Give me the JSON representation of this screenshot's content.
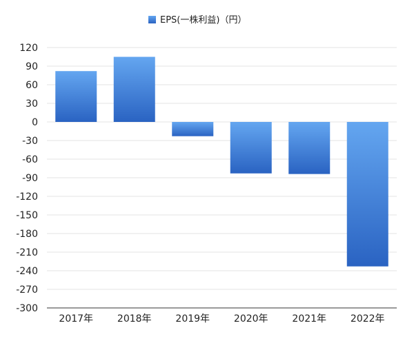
{
  "chart_data": {
    "type": "bar",
    "categories": [
      "2017年",
      "2018年",
      "2019年",
      "2020年",
      "2021年",
      "2022年"
    ],
    "series": [
      {
        "name": "EPS(一株利益)（円）",
        "values": [
          82,
          105,
          -23,
          -83,
          -84,
          -233
        ]
      }
    ],
    "ylim": [
      -300,
      120
    ],
    "yticks": [
      120,
      90,
      60,
      30,
      0,
      -30,
      -60,
      -90,
      -120,
      -150,
      -180,
      -210,
      -240,
      -270,
      -300
    ],
    "ytick_labels": [
      "120",
      "90",
      "60",
      "30",
      "0",
      "-30",
      "-60",
      "-90",
      "-120",
      "-150",
      "-180",
      "-210",
      "-240",
      "-270",
      "-300"
    ],
    "grid": true,
    "legend_position": "top-center",
    "colors": {
      "bar_top": "#64a6f0",
      "bar_bottom": "#2a63c2",
      "grid": "#e3e3e3",
      "axis": "#333333",
      "text": "#222222"
    }
  }
}
